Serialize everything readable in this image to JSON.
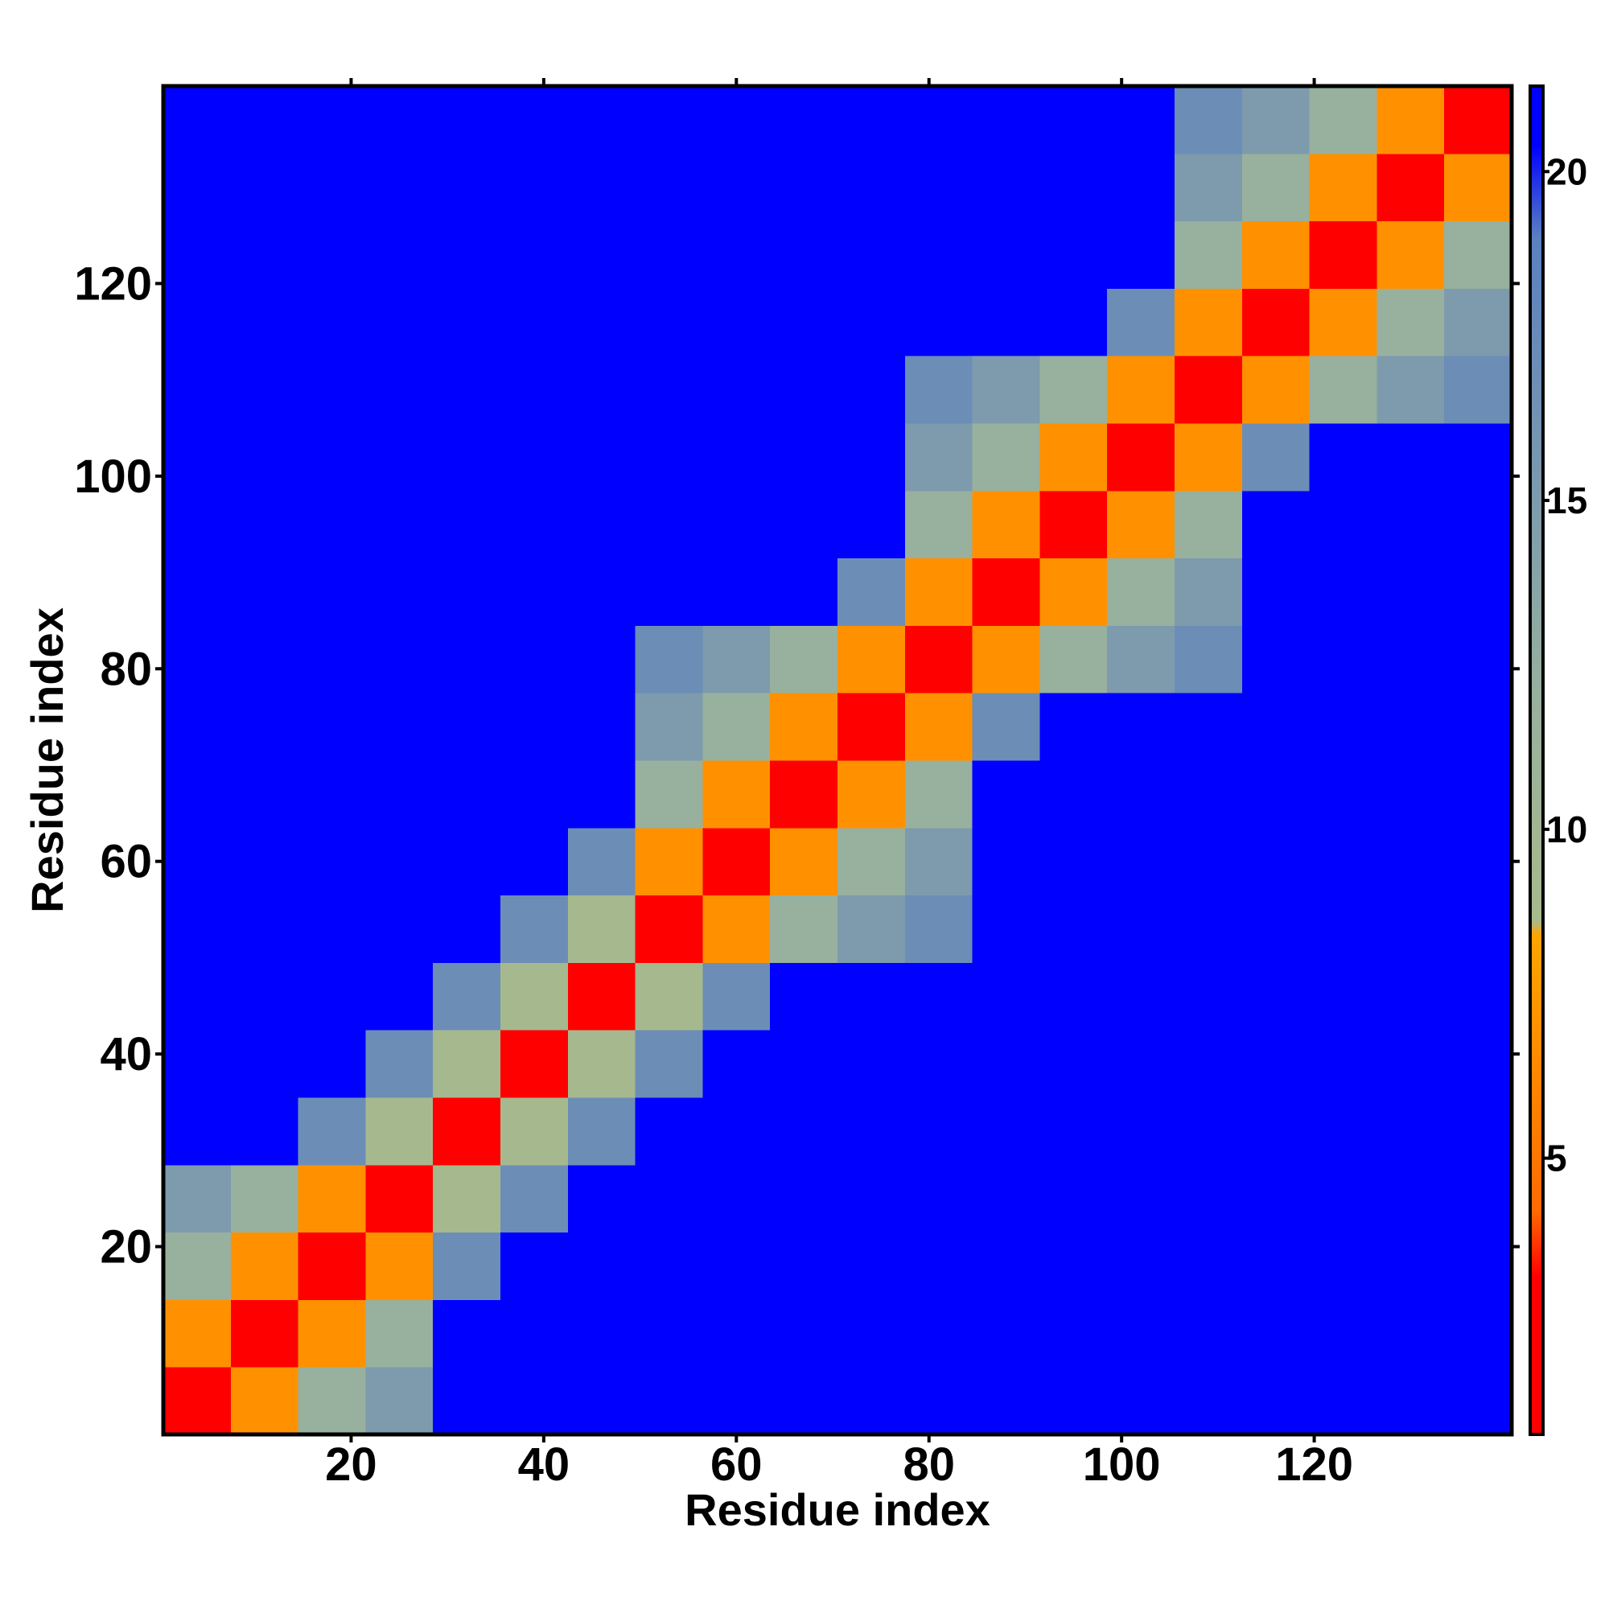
{
  "chart_data": {
    "type": "heatmap",
    "xlabel": "Residue index",
    "ylabel": "Residue index",
    "x": [
      4,
      11,
      18,
      25,
      32,
      39,
      46,
      53,
      60,
      67,
      74,
      81,
      88,
      95,
      102,
      109,
      116,
      123,
      130,
      137
    ],
    "y": [
      4,
      11,
      18,
      25,
      32,
      39,
      46,
      53,
      60,
      67,
      74,
      81,
      88,
      95,
      102,
      109,
      116,
      123,
      130,
      137
    ],
    "z": [
      [
        2,
        7,
        12,
        15,
        21,
        21,
        21,
        21,
        21,
        21,
        21,
        21,
        21,
        21,
        21,
        21,
        21,
        21,
        21,
        21
      ],
      [
        7,
        2,
        7,
        12,
        21,
        21,
        21,
        21,
        21,
        21,
        21,
        21,
        21,
        21,
        21,
        21,
        21,
        21,
        21,
        21
      ],
      [
        12,
        7,
        2,
        7,
        17,
        21,
        21,
        21,
        21,
        21,
        21,
        21,
        21,
        21,
        21,
        21,
        21,
        21,
        21,
        21
      ],
      [
        15,
        12,
        7,
        2,
        9,
        17,
        21,
        21,
        21,
        21,
        21,
        21,
        21,
        21,
        21,
        21,
        21,
        21,
        21,
        21
      ],
      [
        21,
        21,
        17,
        9,
        2,
        9,
        17,
        21,
        21,
        21,
        21,
        21,
        21,
        21,
        21,
        21,
        21,
        21,
        21,
        21
      ],
      [
        21,
        21,
        21,
        17,
        9,
        2,
        9,
        17,
        21,
        21,
        21,
        21,
        21,
        21,
        21,
        21,
        21,
        21,
        21,
        21
      ],
      [
        21,
        21,
        21,
        21,
        17,
        9,
        2,
        9,
        17,
        21,
        21,
        21,
        21,
        21,
        21,
        21,
        21,
        21,
        21,
        21
      ],
      [
        21,
        21,
        21,
        21,
        21,
        17,
        9,
        2,
        7,
        12,
        15,
        17,
        21,
        21,
        21,
        21,
        21,
        21,
        21,
        21
      ],
      [
        21,
        21,
        21,
        21,
        21,
        21,
        17,
        7,
        2,
        7,
        12,
        15,
        21,
        21,
        21,
        21,
        21,
        21,
        21,
        21
      ],
      [
        21,
        21,
        21,
        21,
        21,
        21,
        21,
        12,
        7,
        2,
        7,
        12,
        21,
        21,
        21,
        21,
        21,
        21,
        21,
        21
      ],
      [
        21,
        21,
        21,
        21,
        21,
        21,
        21,
        15,
        12,
        7,
        2,
        7,
        17,
        21,
        21,
        21,
        21,
        21,
        21,
        21
      ],
      [
        21,
        21,
        21,
        21,
        21,
        21,
        21,
        17,
        15,
        12,
        7,
        2,
        7,
        12,
        15,
        17,
        21,
        21,
        21,
        21
      ],
      [
        21,
        21,
        21,
        21,
        21,
        21,
        21,
        21,
        21,
        21,
        17,
        7,
        2,
        7,
        12,
        15,
        21,
        21,
        21,
        21
      ],
      [
        21,
        21,
        21,
        21,
        21,
        21,
        21,
        21,
        21,
        21,
        21,
        12,
        7,
        2,
        7,
        12,
        21,
        21,
        21,
        21
      ],
      [
        21,
        21,
        21,
        21,
        21,
        21,
        21,
        21,
        21,
        21,
        21,
        15,
        12,
        7,
        2,
        7,
        17,
        21,
        21,
        21
      ],
      [
        21,
        21,
        21,
        21,
        21,
        21,
        21,
        21,
        21,
        21,
        21,
        17,
        15,
        12,
        7,
        2,
        7,
        12,
        15,
        17
      ],
      [
        21,
        21,
        21,
        21,
        21,
        21,
        21,
        21,
        21,
        21,
        21,
        21,
        21,
        21,
        17,
        7,
        2,
        7,
        12,
        15
      ],
      [
        21,
        21,
        21,
        21,
        21,
        21,
        21,
        21,
        21,
        21,
        21,
        21,
        21,
        21,
        21,
        12,
        7,
        2,
        7,
        12
      ],
      [
        21,
        21,
        21,
        21,
        21,
        21,
        21,
        21,
        21,
        21,
        21,
        21,
        21,
        21,
        21,
        15,
        12,
        7,
        2,
        7
      ],
      [
        21,
        21,
        21,
        21,
        21,
        21,
        21,
        21,
        21,
        21,
        21,
        21,
        21,
        21,
        21,
        17,
        15,
        12,
        7,
        2
      ]
    ],
    "xlim": [
      0.5,
      140.5
    ],
    "ylim": [
      0.5,
      140.5
    ],
    "xticks": [
      20,
      40,
      60,
      80,
      100,
      120
    ],
    "yticks": [
      20,
      40,
      60,
      80,
      100,
      120
    ],
    "clim": [
      0.8,
      21.3
    ],
    "cticks": [
      5,
      10,
      15,
      20
    ],
    "colorscale": [
      {
        "value": 0.8,
        "color": "#ff0000"
      },
      {
        "value": 3.2,
        "color": "#ff0000"
      },
      {
        "value": 4.2,
        "color": "#ff6a00"
      },
      {
        "value": 8.4,
        "color": "#ffa500"
      },
      {
        "value": 8.6,
        "color": "#a8ba8c"
      },
      {
        "value": 12,
        "color": "#98b09e"
      },
      {
        "value": 19,
        "color": "#5a80c0"
      },
      {
        "value": 20.4,
        "color": "#0000ff"
      },
      {
        "value": 21.3,
        "color": "#0000ff"
      }
    ]
  }
}
